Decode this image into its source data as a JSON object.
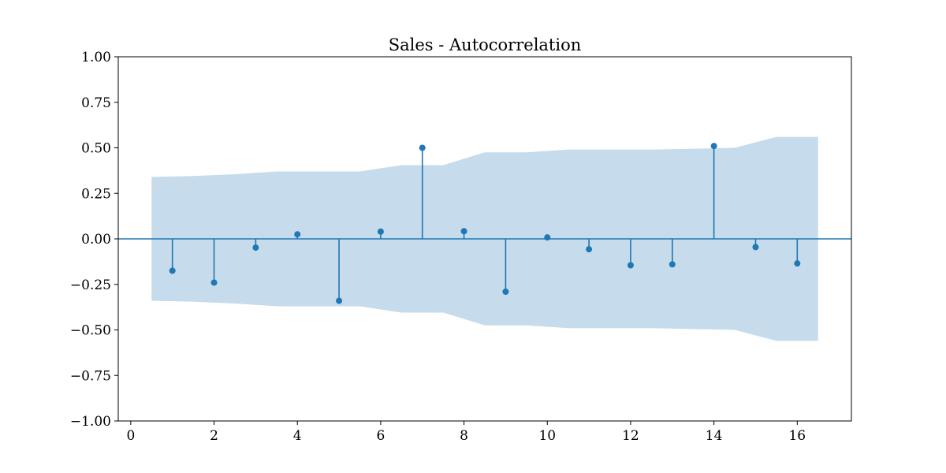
{
  "chart_data": {
    "type": "stem",
    "title": "Sales - Autocorrelation",
    "xlabel": "",
    "ylabel": "",
    "xlim": [
      -0.3,
      17.3
    ],
    "ylim": [
      -1.0,
      1.0
    ],
    "x_ticks": [
      0,
      2,
      4,
      6,
      8,
      10,
      12,
      14,
      16
    ],
    "y_ticks": [
      1.0,
      0.75,
      0.5,
      0.25,
      0.0,
      -0.25,
      -0.5,
      -0.75,
      -1.0
    ],
    "x_tick_labels": [
      "0",
      "2",
      "4",
      "6",
      "8",
      "10",
      "12",
      "14",
      "16"
    ],
    "y_tick_labels": [
      "1.00",
      "0.75",
      "0.50",
      "0.25",
      "0.00",
      "−0.25",
      "−0.50",
      "−0.75",
      "−1.00"
    ],
    "grid": false,
    "colors": {
      "stem": "#1f77b4",
      "confidence_band": "#c6dbeb"
    },
    "lags": [
      1,
      2,
      3,
      4,
      5,
      6,
      7,
      8,
      9,
      10,
      11,
      12,
      13,
      14,
      15,
      16
    ],
    "values": [
      -0.175,
      -0.24,
      -0.048,
      0.025,
      -0.34,
      0.04,
      0.5,
      0.042,
      -0.29,
      0.008,
      -0.057,
      -0.145,
      -0.14,
      0.51,
      -0.045,
      -0.135
    ],
    "confidence_band": {
      "x": [
        0.5,
        1.5,
        2.5,
        3.5,
        4.5,
        5.5,
        6.5,
        7.5,
        8.5,
        9.5,
        10.5,
        11.5,
        12.5,
        13.5,
        14.5,
        15.5,
        16.5
      ],
      "upper": [
        0.34,
        0.345,
        0.355,
        0.37,
        0.37,
        0.37,
        0.405,
        0.405,
        0.475,
        0.475,
        0.49,
        0.49,
        0.49,
        0.495,
        0.5,
        0.56,
        0.56
      ]
    }
  }
}
